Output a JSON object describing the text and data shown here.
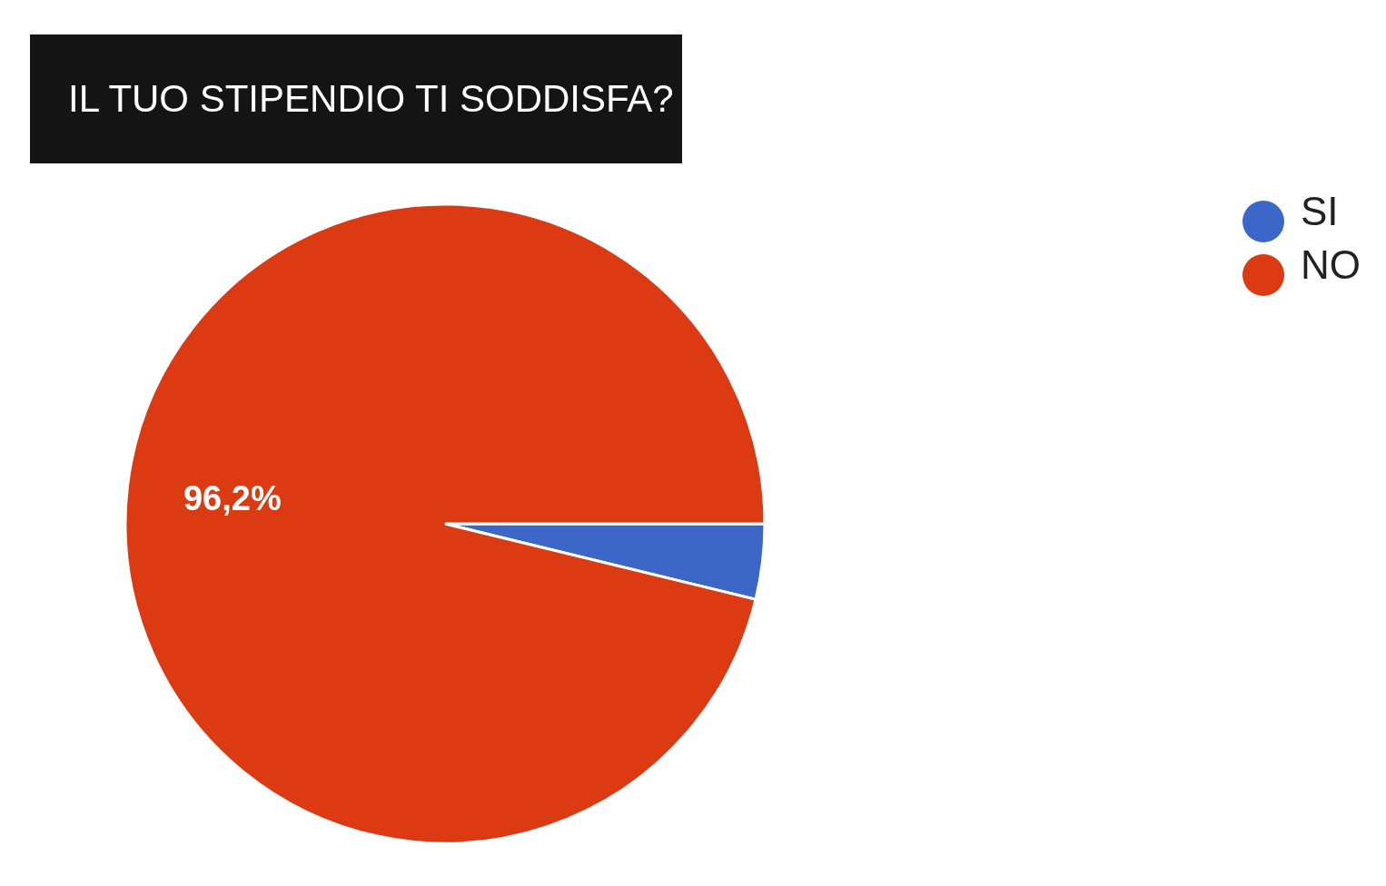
{
  "chart_data": {
    "type": "pie",
    "title": "IL TUO STIPENDIO TI SODDISFA?",
    "categories": [
      "SI",
      "NO"
    ],
    "values": [
      3.8,
      96.2
    ],
    "colors": [
      "#3c66c8",
      "#dc3a12"
    ],
    "value_labels": [
      null,
      "96,2%"
    ],
    "legend": "top right"
  }
}
